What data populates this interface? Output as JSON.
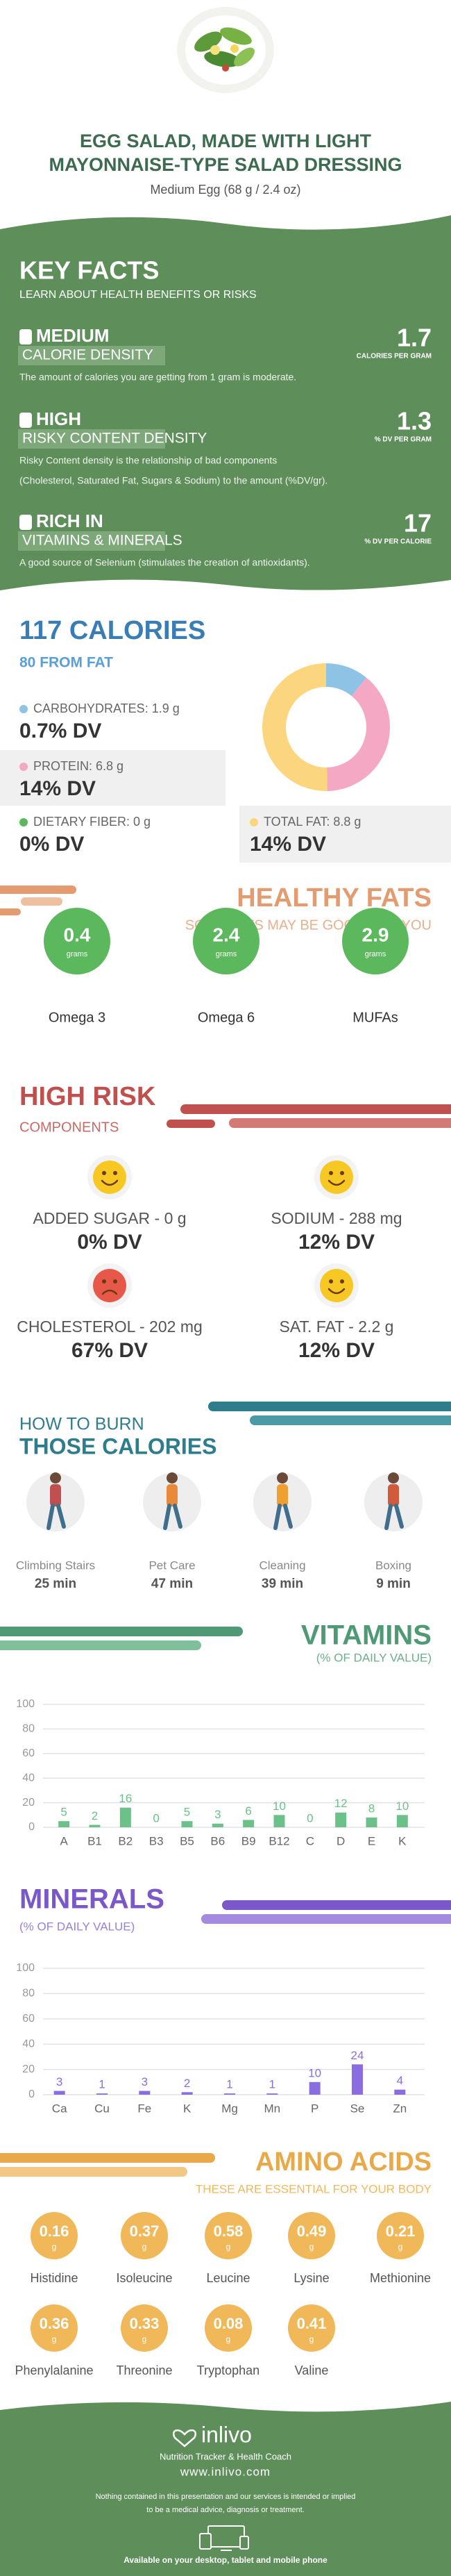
{
  "header": {
    "title_lines": [
      "EGG SALAD, MADE WITH LIGHT",
      "MAYONNAISE-TYPE SALAD DRESSING"
    ],
    "subtitle": "Medium Egg (68 g / 2.4 oz)"
  },
  "key_facts": {
    "title": "KEY FACTS",
    "subtitle": "LEARN ABOUT HEALTH BENEFITS OR RISKS",
    "items": [
      {
        "level": "MEDIUM",
        "name": "CALORIE DENSITY",
        "value": 1.7,
        "unit": "CALORIES PER GRAM",
        "description": [
          "The amount of calories you are getting from 1 gram is moderate."
        ]
      },
      {
        "level": "HIGH",
        "name": "RISKY CONTENT DENSITY",
        "value": 1.3,
        "unit": "% DV PER GRAM",
        "description": [
          "Risky Content density is the relationship of bad components",
          "(Cholesterol, Saturated Fat, Sugars & Sodium) to the amount (%DV/gr)."
        ]
      },
      {
        "level": "RICH  IN",
        "name": "VITAMINS & MINERALS",
        "value": 17,
        "unit": "% DV PER CALORIE",
        "description": [
          "A good source of Selenium (stimulates the creation of antioxidants)."
        ]
      }
    ]
  },
  "calories": {
    "title": "117 CALORIES",
    "subtitle": "80 FROM FAT",
    "macros": [
      {
        "label": "CARBOHYDRATES: 1.9 g",
        "grams": 1.9,
        "dv": "0.7% DV",
        "color": "#8ec3e6"
      },
      {
        "label": "PROTEIN: 6.8 g",
        "grams": 6.8,
        "dv": "14% DV",
        "color": "#f4a8c4"
      },
      {
        "label": "TOTAL FAT: 8.8 g",
        "grams": 8.8,
        "dv": "14% DV",
        "color": "#fcd67e"
      }
    ],
    "fiber": {
      "label": "DIETARY FIBER: 0 g",
      "dv": "0% DV",
      "color": "#5cb85c"
    }
  },
  "healthy_fats": {
    "title": "HEALTHY FATS",
    "subtitle": "SOME FATS MAY BE GOOD FOR YOU",
    "unit": "grams",
    "items": [
      {
        "value": 0.4,
        "name": "Omega 3"
      },
      {
        "value": 2.4,
        "name": "Omega 6"
      },
      {
        "value": 2.9,
        "name": "MUFAs"
      }
    ]
  },
  "high_risk": {
    "title": "HIGH RISK",
    "subtitle": "COMPONENTS",
    "items": [
      {
        "label": "ADDED SUGAR - 0 g",
        "dv": "0% DV",
        "mood": "happy",
        "color": "#f7c824"
      },
      {
        "label": "SODIUM - 288 mg",
        "dv": "12% DV",
        "mood": "happy",
        "color": "#f7c824"
      },
      {
        "label": "CHOLESTEROL - 202 mg",
        "dv": "67% DV",
        "mood": "sad",
        "color": "#e8584a"
      },
      {
        "label": "SAT. FAT - 2.2 g",
        "dv": "12% DV",
        "mood": "happy",
        "color": "#f7c824"
      }
    ]
  },
  "burn": {
    "title_lines": [
      "HOW TO BURN",
      "THOSE CALORIES"
    ],
    "activities": [
      {
        "name": "Climbing Stairs",
        "time": "25 min"
      },
      {
        "name": "Pet Care",
        "time": "47 min"
      },
      {
        "name": "Cleaning",
        "time": "39 min"
      },
      {
        "name": "Boxing",
        "time": "9 min"
      }
    ]
  },
  "chart_data": [
    {
      "type": "bar",
      "title": "VITAMINS",
      "subtitle": "(% OF DAILY VALUE)",
      "categories": [
        "A",
        "B1",
        "B2",
        "B3",
        "B5",
        "B6",
        "B9",
        "B12",
        "C",
        "D",
        "E",
        "K"
      ],
      "values": [
        5,
        2,
        16,
        0,
        5,
        3,
        6,
        10,
        0,
        12,
        8,
        10
      ],
      "color": "#6cc08a",
      "ylim": [
        0,
        100
      ],
      "yticks": [
        0,
        20,
        40,
        60,
        80,
        100
      ],
      "grid": true
    },
    {
      "type": "bar",
      "title": "MINERALS",
      "subtitle": "(% OF DAILY VALUE)",
      "categories": [
        "Ca",
        "Cu",
        "Fe",
        "K",
        "Mg",
        "Mn",
        "P",
        "Se",
        "Zn"
      ],
      "values": [
        3,
        1,
        3,
        2,
        1,
        1,
        10,
        24,
        4
      ],
      "color": "#8a6de0",
      "ylim": [
        0,
        100
      ],
      "yticks": [
        0,
        20,
        40,
        60,
        80,
        100
      ],
      "grid": true
    }
  ],
  "amino_acids": {
    "title": "AMINO ACIDS",
    "subtitle": "THESE ARE ESSENTIAL FOR YOUR BODY",
    "unit": "g",
    "items": [
      {
        "name": "Histidine",
        "value": 0.16
      },
      {
        "name": "Isoleucine",
        "value": 0.37
      },
      {
        "name": "Leucine",
        "value": 0.58
      },
      {
        "name": "Lysine",
        "value": 0.49
      },
      {
        "name": "Methionine",
        "value": 0.21
      },
      {
        "name": "Phenylalanine",
        "value": 0.36
      },
      {
        "name": "Threonine",
        "value": 0.33
      },
      {
        "name": "Tryptophan",
        "value": 0.08
      },
      {
        "name": "Valine",
        "value": 0.41
      }
    ]
  },
  "footer": {
    "brand": "inlivo",
    "tagline": "Nutrition Tracker & Health Coach",
    "url": "www.inlivo.com",
    "disclaimer": [
      "Nothing contained in this presentation and our services is intended or implied",
      "to be a medical advice, diagnosis or treatment."
    ],
    "available": "Available on your desktop, tablet and mobile phone"
  }
}
